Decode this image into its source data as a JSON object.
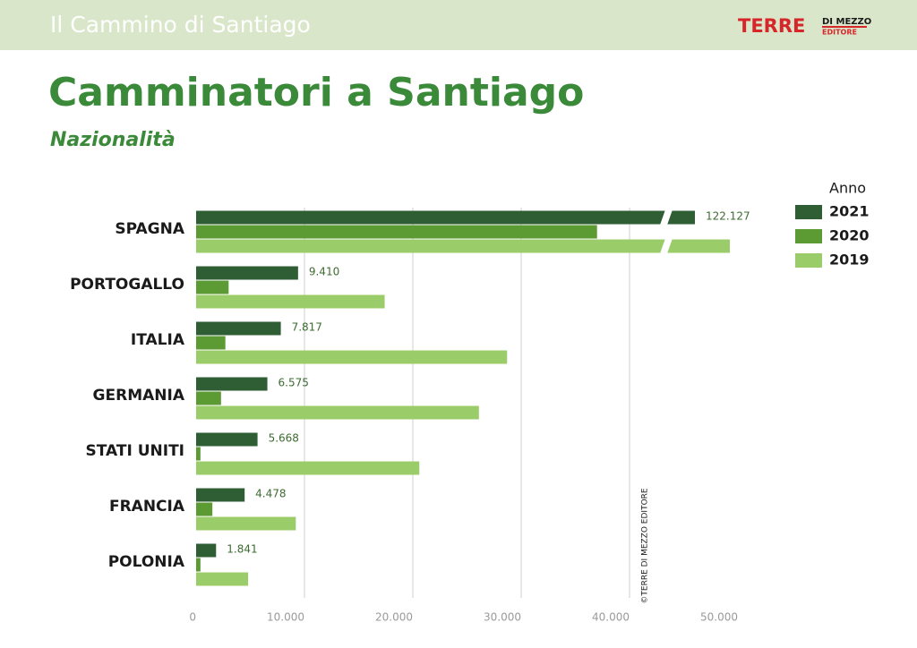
{
  "header": {
    "title": "Il Cammino di Santiago",
    "logo": [
      "TERRE",
      "DI MEZZO",
      "EDITORE"
    ]
  },
  "credit": "©TERRE DI MEZZO EDITORE",
  "chart_data": {
    "type": "hbar",
    "title": "Camminatori a Santiago",
    "subtitle": "Nazionalità",
    "legend_title": "Anno",
    "categories": [
      "SPAGNA",
      "PORTOGALLO",
      "ITALIA",
      "GERMANIA",
      "STATI UNITI",
      "FRANCIA",
      "POLONIA"
    ],
    "series": [
      {
        "name": "2021",
        "color": "#2f5e34",
        "values": [
          122127,
          9410,
          7817,
          6575,
          5668,
          4478,
          1841
        ],
        "value_labels": [
          "122.127",
          "9.410",
          "7.817",
          "6.575",
          "5.668",
          "4.478",
          "1.841"
        ]
      },
      {
        "name": "2020",
        "color": "#5c9a34",
        "values": [
          37000,
          3000,
          2700,
          2300,
          400,
          1500,
          400
        ]
      },
      {
        "name": "2019",
        "color": "#9bcc6a",
        "values": [
          146688,
          17400,
          28700,
          26100,
          20600,
          9200,
          4800
        ]
      }
    ],
    "xlim": [
      0,
      50000
    ],
    "xticks": [
      0,
      {
        "value": 10000,
        "label": "10.000"
      },
      {
        "value": 20000,
        "label": "20.000"
      },
      {
        "value": 30000,
        "label": "30.000"
      },
      {
        "value": 40000,
        "label": "40.000"
      },
      {
        "value": 50000,
        "label": "50.000"
      }
    ],
    "grid": true,
    "axis_break": true
  }
}
